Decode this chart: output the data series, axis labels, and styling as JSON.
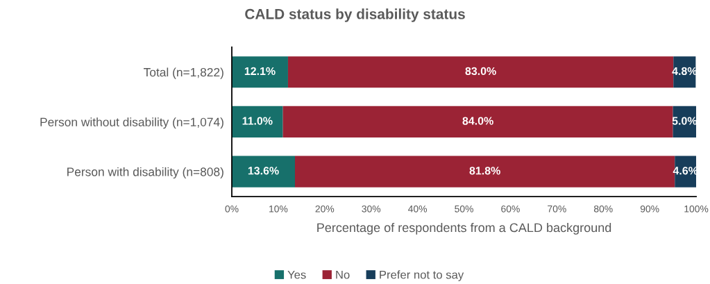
{
  "chart_data": {
    "type": "bar",
    "orientation": "horizontal",
    "stacked": true,
    "title": "CALD status by disability status",
    "xlabel": "Percentage of respondents from a CALD background",
    "categories": [
      "Total (n=1,822)",
      "Person without disability (n=1,074)",
      "Person with disability (n=808)"
    ],
    "series": [
      {
        "name": "Yes",
        "color": "#17706b",
        "values": [
          12.1,
          11.0,
          13.6
        ],
        "value_labels": [
          "12.1%",
          "11.0%",
          "13.6%"
        ]
      },
      {
        "name": "No",
        "color": "#9b2335",
        "values": [
          83.0,
          84.0,
          81.8
        ],
        "value_labels": [
          "83.0%",
          "84.0%",
          "81.8%"
        ]
      },
      {
        "name": "Prefer not to say",
        "color": "#173d5a",
        "values": [
          4.8,
          5.0,
          4.6
        ],
        "value_labels": [
          "4.8%",
          "5.0%",
          "4.6%"
        ]
      }
    ],
    "xlim": [
      0,
      100
    ],
    "xticks": [
      {
        "value": 0,
        "label": "0%"
      },
      {
        "value": 10,
        "label": "10%"
      },
      {
        "value": 20,
        "label": "20%"
      },
      {
        "value": 30,
        "label": "30%"
      },
      {
        "value": 40,
        "label": "40%"
      },
      {
        "value": 50,
        "label": "50%"
      },
      {
        "value": 60,
        "label": "60%"
      },
      {
        "value": 70,
        "label": "70%"
      },
      {
        "value": 80,
        "label": "80%"
      },
      {
        "value": 90,
        "label": "90%"
      },
      {
        "value": 100,
        "label": "100%"
      }
    ],
    "grid": false,
    "legend": "bottom"
  }
}
